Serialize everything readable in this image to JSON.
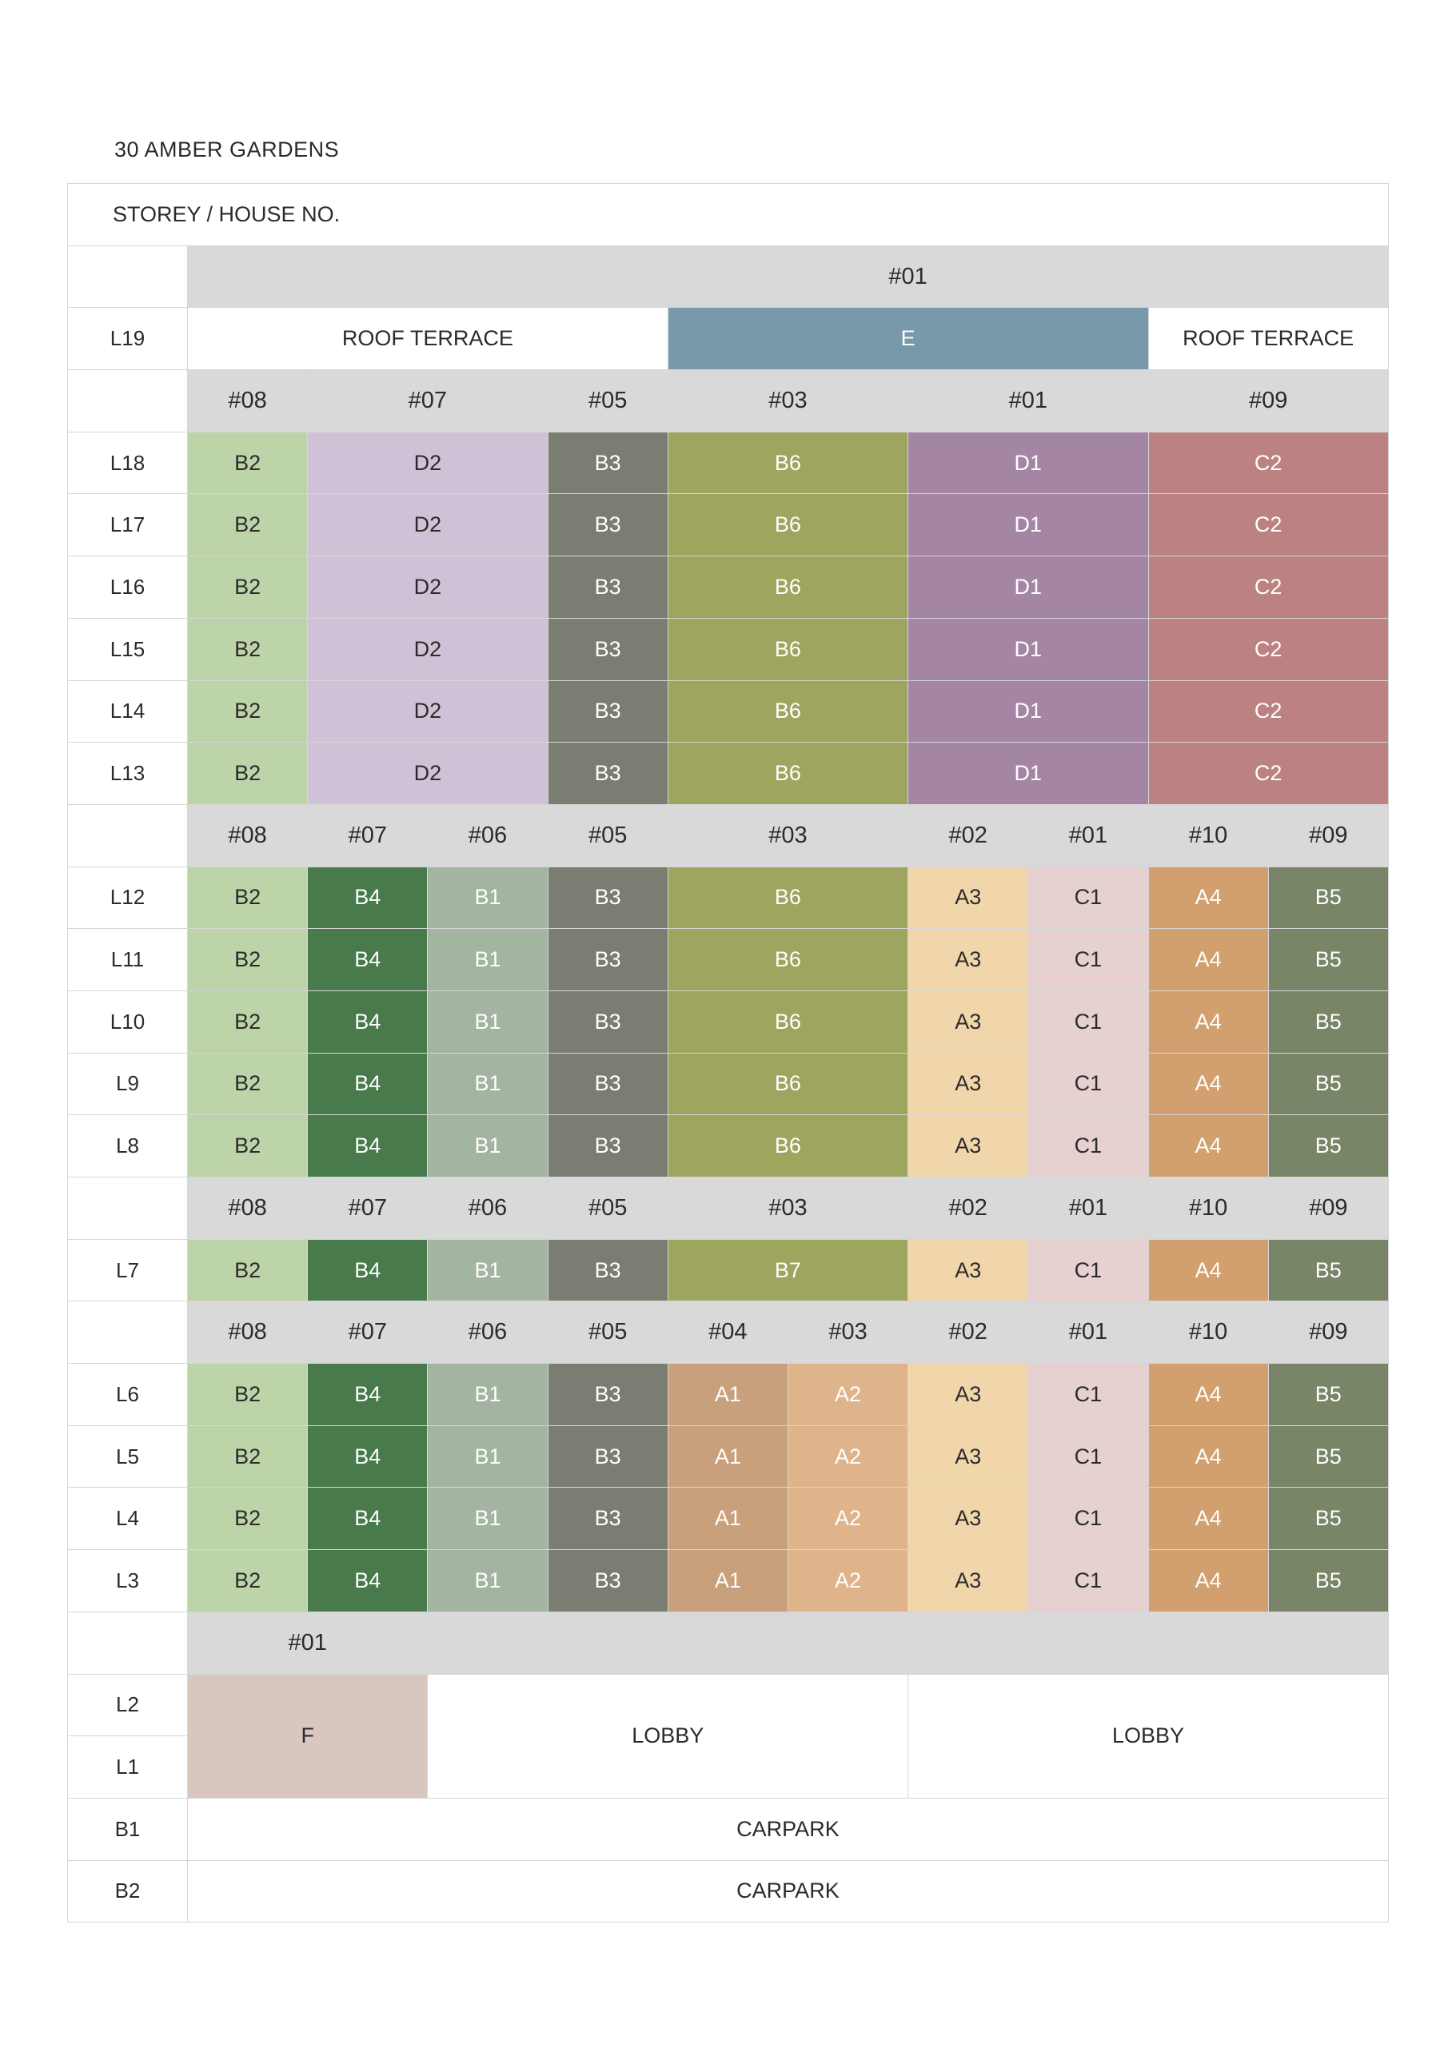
{
  "title": "30 AMBER GARDENS",
  "header": "STOREY / HOUSE NO.",
  "colors": {
    "A1": "#c8a07c",
    "A2": "#dfb48a",
    "A3": "#f0d6aa",
    "A4": "#d2a06f",
    "B1": "#a3b4a1",
    "B2": "#bdd3a8",
    "B3": "#7a7d72",
    "B4": "#487a4c",
    "B5": "#788566",
    "B6": "#9ea55e",
    "B7": "#9ea55e",
    "C1": "#e6d0d0",
    "C2": "#bc8282",
    "D1": "#a486a4",
    "D2": "#d0c2d6",
    "E": "#7799a9",
    "F": "#d8c6bf",
    "header_band": "#d9d9d9"
  },
  "rows": [
    {
      "label": "",
      "header": true,
      "cells": [
        {
          "t": "",
          "s": 1
        },
        {
          "t": "",
          "s": 1
        },
        {
          "t": "",
          "s": 1
        },
        {
          "t": "",
          "s": 1
        },
        {
          "t": "#01",
          "s": 4
        },
        {
          "t": "",
          "s": 1
        },
        {
          "t": "",
          "s": 1
        }
      ]
    },
    {
      "label": "L19",
      "cells": [
        {
          "t": "ROOF TERRACE",
          "s": 4
        },
        {
          "t": "E",
          "s": 4,
          "u": "E"
        },
        {
          "t": "ROOF TERRACE",
          "s": 2
        }
      ]
    },
    {
      "label": "",
      "header": true,
      "cells": [
        {
          "t": "#08",
          "s": 1
        },
        {
          "t": "#07",
          "s": 2
        },
        {
          "t": "#05",
          "s": 1
        },
        {
          "t": "#03",
          "s": 2
        },
        {
          "t": "#01",
          "s": 2
        },
        {
          "t": "#09",
          "s": 2
        }
      ]
    },
    {
      "label": "L18",
      "cells": [
        {
          "t": "B2",
          "s": 1,
          "u": "B2"
        },
        {
          "t": "D2",
          "s": 2,
          "u": "D2"
        },
        {
          "t": "B3",
          "s": 1,
          "u": "B3"
        },
        {
          "t": "B6",
          "s": 2,
          "u": "B6"
        },
        {
          "t": "D1",
          "s": 2,
          "u": "D1"
        },
        {
          "t": "C2",
          "s": 2,
          "u": "C2"
        }
      ]
    },
    {
      "label": "L17",
      "cells": [
        {
          "t": "B2",
          "s": 1,
          "u": "B2"
        },
        {
          "t": "D2",
          "s": 2,
          "u": "D2"
        },
        {
          "t": "B3",
          "s": 1,
          "u": "B3"
        },
        {
          "t": "B6",
          "s": 2,
          "u": "B6"
        },
        {
          "t": "D1",
          "s": 2,
          "u": "D1"
        },
        {
          "t": "C2",
          "s": 2,
          "u": "C2"
        }
      ]
    },
    {
      "label": "L16",
      "cells": [
        {
          "t": "B2",
          "s": 1,
          "u": "B2"
        },
        {
          "t": "D2",
          "s": 2,
          "u": "D2"
        },
        {
          "t": "B3",
          "s": 1,
          "u": "B3"
        },
        {
          "t": "B6",
          "s": 2,
          "u": "B6"
        },
        {
          "t": "D1",
          "s": 2,
          "u": "D1"
        },
        {
          "t": "C2",
          "s": 2,
          "u": "C2"
        }
      ]
    },
    {
      "label": "L15",
      "cells": [
        {
          "t": "B2",
          "s": 1,
          "u": "B2"
        },
        {
          "t": "D2",
          "s": 2,
          "u": "D2"
        },
        {
          "t": "B3",
          "s": 1,
          "u": "B3"
        },
        {
          "t": "B6",
          "s": 2,
          "u": "B6"
        },
        {
          "t": "D1",
          "s": 2,
          "u": "D1"
        },
        {
          "t": "C2",
          "s": 2,
          "u": "C2"
        }
      ]
    },
    {
      "label": "L14",
      "cells": [
        {
          "t": "B2",
          "s": 1,
          "u": "B2"
        },
        {
          "t": "D2",
          "s": 2,
          "u": "D2"
        },
        {
          "t": "B3",
          "s": 1,
          "u": "B3"
        },
        {
          "t": "B6",
          "s": 2,
          "u": "B6"
        },
        {
          "t": "D1",
          "s": 2,
          "u": "D1"
        },
        {
          "t": "C2",
          "s": 2,
          "u": "C2"
        }
      ]
    },
    {
      "label": "L13",
      "cells": [
        {
          "t": "B2",
          "s": 1,
          "u": "B2"
        },
        {
          "t": "D2",
          "s": 2,
          "u": "D2"
        },
        {
          "t": "B3",
          "s": 1,
          "u": "B3"
        },
        {
          "t": "B6",
          "s": 2,
          "u": "B6"
        },
        {
          "t": "D1",
          "s": 2,
          "u": "D1"
        },
        {
          "t": "C2",
          "s": 2,
          "u": "C2"
        }
      ]
    },
    {
      "label": "",
      "header": true,
      "cells": [
        {
          "t": "#08",
          "s": 1
        },
        {
          "t": "#07",
          "s": 1
        },
        {
          "t": "#06",
          "s": 1
        },
        {
          "t": "#05",
          "s": 1
        },
        {
          "t": "#03",
          "s": 2
        },
        {
          "t": "#02",
          "s": 1
        },
        {
          "t": "#01",
          "s": 1
        },
        {
          "t": "#10",
          "s": 1
        },
        {
          "t": "#09",
          "s": 1
        }
      ]
    },
    {
      "label": "L12",
      "cells": [
        {
          "t": "B2",
          "s": 1,
          "u": "B2"
        },
        {
          "t": "B4",
          "s": 1,
          "u": "B4"
        },
        {
          "t": "B1",
          "s": 1,
          "u": "B1"
        },
        {
          "t": "B3",
          "s": 1,
          "u": "B3"
        },
        {
          "t": "B6",
          "s": 2,
          "u": "B6"
        },
        {
          "t": "A3",
          "s": 1,
          "u": "A3"
        },
        {
          "t": "C1",
          "s": 1,
          "u": "C1"
        },
        {
          "t": "A4",
          "s": 1,
          "u": "A4"
        },
        {
          "t": "B5",
          "s": 1,
          "u": "B5"
        }
      ]
    },
    {
      "label": "L11",
      "cells": [
        {
          "t": "B2",
          "s": 1,
          "u": "B2"
        },
        {
          "t": "B4",
          "s": 1,
          "u": "B4"
        },
        {
          "t": "B1",
          "s": 1,
          "u": "B1"
        },
        {
          "t": "B3",
          "s": 1,
          "u": "B3"
        },
        {
          "t": "B6",
          "s": 2,
          "u": "B6"
        },
        {
          "t": "A3",
          "s": 1,
          "u": "A3"
        },
        {
          "t": "C1",
          "s": 1,
          "u": "C1"
        },
        {
          "t": "A4",
          "s": 1,
          "u": "A4"
        },
        {
          "t": "B5",
          "s": 1,
          "u": "B5"
        }
      ]
    },
    {
      "label": "L10",
      "cells": [
        {
          "t": "B2",
          "s": 1,
          "u": "B2"
        },
        {
          "t": "B4",
          "s": 1,
          "u": "B4"
        },
        {
          "t": "B1",
          "s": 1,
          "u": "B1"
        },
        {
          "t": "B3",
          "s": 1,
          "u": "B3"
        },
        {
          "t": "B6",
          "s": 2,
          "u": "B6"
        },
        {
          "t": "A3",
          "s": 1,
          "u": "A3"
        },
        {
          "t": "C1",
          "s": 1,
          "u": "C1"
        },
        {
          "t": "A4",
          "s": 1,
          "u": "A4"
        },
        {
          "t": "B5",
          "s": 1,
          "u": "B5"
        }
      ]
    },
    {
      "label": "L9",
      "cells": [
        {
          "t": "B2",
          "s": 1,
          "u": "B2"
        },
        {
          "t": "B4",
          "s": 1,
          "u": "B4"
        },
        {
          "t": "B1",
          "s": 1,
          "u": "B1"
        },
        {
          "t": "B3",
          "s": 1,
          "u": "B3"
        },
        {
          "t": "B6",
          "s": 2,
          "u": "B6"
        },
        {
          "t": "A3",
          "s": 1,
          "u": "A3"
        },
        {
          "t": "C1",
          "s": 1,
          "u": "C1"
        },
        {
          "t": "A4",
          "s": 1,
          "u": "A4"
        },
        {
          "t": "B5",
          "s": 1,
          "u": "B5"
        }
      ]
    },
    {
      "label": "L8",
      "cells": [
        {
          "t": "B2",
          "s": 1,
          "u": "B2"
        },
        {
          "t": "B4",
          "s": 1,
          "u": "B4"
        },
        {
          "t": "B1",
          "s": 1,
          "u": "B1"
        },
        {
          "t": "B3",
          "s": 1,
          "u": "B3"
        },
        {
          "t": "B6",
          "s": 2,
          "u": "B6"
        },
        {
          "t": "A3",
          "s": 1,
          "u": "A3"
        },
        {
          "t": "C1",
          "s": 1,
          "u": "C1"
        },
        {
          "t": "A4",
          "s": 1,
          "u": "A4"
        },
        {
          "t": "B5",
          "s": 1,
          "u": "B5"
        }
      ]
    },
    {
      "label": "",
      "header": true,
      "cells": [
        {
          "t": "#08",
          "s": 1
        },
        {
          "t": "#07",
          "s": 1
        },
        {
          "t": "#06",
          "s": 1
        },
        {
          "t": "#05",
          "s": 1
        },
        {
          "t": "#03",
          "s": 2
        },
        {
          "t": "#02",
          "s": 1
        },
        {
          "t": "#01",
          "s": 1
        },
        {
          "t": "#10",
          "s": 1
        },
        {
          "t": "#09",
          "s": 1
        }
      ]
    },
    {
      "label": "L7",
      "cells": [
        {
          "t": "B2",
          "s": 1,
          "u": "B2"
        },
        {
          "t": "B4",
          "s": 1,
          "u": "B4"
        },
        {
          "t": "B1",
          "s": 1,
          "u": "B1"
        },
        {
          "t": "B3",
          "s": 1,
          "u": "B3"
        },
        {
          "t": "B7",
          "s": 2,
          "u": "B7"
        },
        {
          "t": "A3",
          "s": 1,
          "u": "A3"
        },
        {
          "t": "C1",
          "s": 1,
          "u": "C1"
        },
        {
          "t": "A4",
          "s": 1,
          "u": "A4"
        },
        {
          "t": "B5",
          "s": 1,
          "u": "B5"
        }
      ]
    },
    {
      "label": "",
      "header": true,
      "cells": [
        {
          "t": "#08",
          "s": 1
        },
        {
          "t": "#07",
          "s": 1
        },
        {
          "t": "#06",
          "s": 1
        },
        {
          "t": "#05",
          "s": 1
        },
        {
          "t": "#04",
          "s": 1
        },
        {
          "t": "#03",
          "s": 1
        },
        {
          "t": "#02",
          "s": 1
        },
        {
          "t": "#01",
          "s": 1
        },
        {
          "t": "#10",
          "s": 1
        },
        {
          "t": "#09",
          "s": 1
        }
      ]
    },
    {
      "label": "L6",
      "cells": [
        {
          "t": "B2",
          "s": 1,
          "u": "B2"
        },
        {
          "t": "B4",
          "s": 1,
          "u": "B4"
        },
        {
          "t": "B1",
          "s": 1,
          "u": "B1"
        },
        {
          "t": "B3",
          "s": 1,
          "u": "B3"
        },
        {
          "t": "A1",
          "s": 1,
          "u": "A1"
        },
        {
          "t": "A2",
          "s": 1,
          "u": "A2"
        },
        {
          "t": "A3",
          "s": 1,
          "u": "A3"
        },
        {
          "t": "C1",
          "s": 1,
          "u": "C1"
        },
        {
          "t": "A4",
          "s": 1,
          "u": "A4"
        },
        {
          "t": "B5",
          "s": 1,
          "u": "B5"
        }
      ]
    },
    {
      "label": "L5",
      "cells": [
        {
          "t": "B2",
          "s": 1,
          "u": "B2"
        },
        {
          "t": "B4",
          "s": 1,
          "u": "B4"
        },
        {
          "t": "B1",
          "s": 1,
          "u": "B1"
        },
        {
          "t": "B3",
          "s": 1,
          "u": "B3"
        },
        {
          "t": "A1",
          "s": 1,
          "u": "A1"
        },
        {
          "t": "A2",
          "s": 1,
          "u": "A2"
        },
        {
          "t": "A3",
          "s": 1,
          "u": "A3"
        },
        {
          "t": "C1",
          "s": 1,
          "u": "C1"
        },
        {
          "t": "A4",
          "s": 1,
          "u": "A4"
        },
        {
          "t": "B5",
          "s": 1,
          "u": "B5"
        }
      ]
    },
    {
      "label": "L4",
      "cells": [
        {
          "t": "B2",
          "s": 1,
          "u": "B2"
        },
        {
          "t": "B4",
          "s": 1,
          "u": "B4"
        },
        {
          "t": "B1",
          "s": 1,
          "u": "B1"
        },
        {
          "t": "B3",
          "s": 1,
          "u": "B3"
        },
        {
          "t": "A1",
          "s": 1,
          "u": "A1"
        },
        {
          "t": "A2",
          "s": 1,
          "u": "A2"
        },
        {
          "t": "A3",
          "s": 1,
          "u": "A3"
        },
        {
          "t": "C1",
          "s": 1,
          "u": "C1"
        },
        {
          "t": "A4",
          "s": 1,
          "u": "A4"
        },
        {
          "t": "B5",
          "s": 1,
          "u": "B5"
        }
      ]
    },
    {
      "label": "L3",
      "cells": [
        {
          "t": "B2",
          "s": 1,
          "u": "B2"
        },
        {
          "t": "B4",
          "s": 1,
          "u": "B4"
        },
        {
          "t": "B1",
          "s": 1,
          "u": "B1"
        },
        {
          "t": "B3",
          "s": 1,
          "u": "B3"
        },
        {
          "t": "A1",
          "s": 1,
          "u": "A1"
        },
        {
          "t": "A2",
          "s": 1,
          "u": "A2"
        },
        {
          "t": "A3",
          "s": 1,
          "u": "A3"
        },
        {
          "t": "C1",
          "s": 1,
          "u": "C1"
        },
        {
          "t": "A4",
          "s": 1,
          "u": "A4"
        },
        {
          "t": "B5",
          "s": 1,
          "u": "B5"
        }
      ]
    },
    {
      "label": "",
      "header": true,
      "cells": [
        {
          "t": "#01",
          "s": 2
        },
        {
          "t": "",
          "s": 1
        },
        {
          "t": "",
          "s": 1
        },
        {
          "t": "",
          "s": 1
        },
        {
          "t": "",
          "s": 1
        },
        {
          "t": "",
          "s": 1
        },
        {
          "t": "",
          "s": 1
        },
        {
          "t": "",
          "s": 1
        },
        {
          "t": "",
          "s": 1
        }
      ]
    },
    {
      "label": "L2",
      "cells": [
        {
          "t": "F",
          "s": 2,
          "r": 2,
          "u": "F"
        },
        {
          "t": "LOBBY",
          "s": 4,
          "r": 2
        },
        {
          "t": "LOBBY",
          "s": 4,
          "r": 2
        }
      ]
    },
    {
      "label": "L1",
      "cells": []
    },
    {
      "label": "B1",
      "cells": [
        {
          "t": "CARPARK",
          "s": 10
        }
      ]
    },
    {
      "label": "B2",
      "cells": [
        {
          "t": "CARPARK",
          "s": 10
        }
      ]
    }
  ]
}
